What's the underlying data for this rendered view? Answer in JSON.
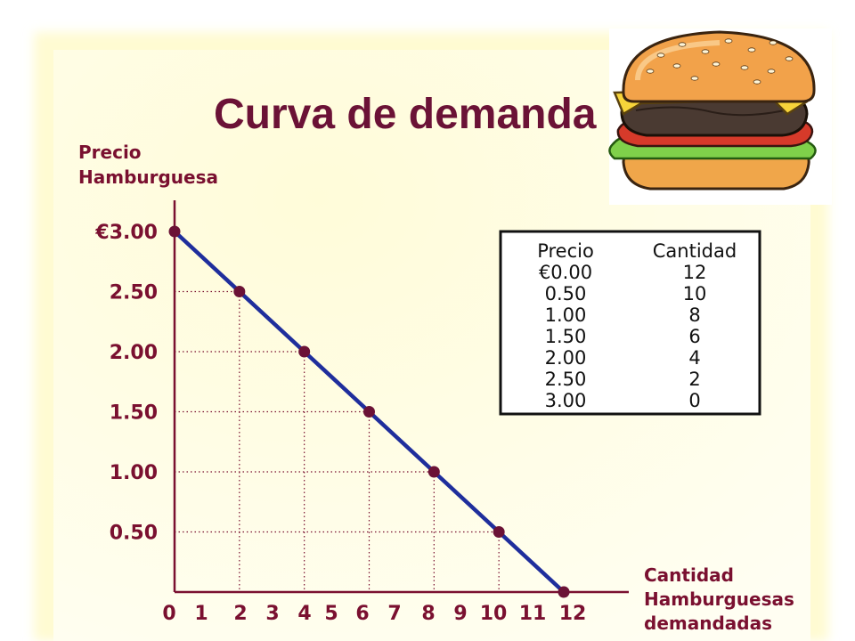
{
  "chart_data": {
    "type": "line",
    "title": "Curva de demanda",
    "ylabel": [
      "Precio",
      "Hamburguesa"
    ],
    "xlabel": [
      "Cantidad",
      "Hamburguesas",
      "demandadas"
    ],
    "x_ticks": [
      "0",
      "1",
      "2",
      "3",
      "4",
      "5",
      "6",
      "7",
      "8",
      "9",
      "10",
      "11",
      "12"
    ],
    "y_ticks": [
      {
        "value": 3.0,
        "label": "€3.00"
      },
      {
        "value": 2.5,
        "label": "2.50"
      },
      {
        "value": 2.0,
        "label": "2.00"
      },
      {
        "value": 1.5,
        "label": "1.50"
      },
      {
        "value": 1.0,
        "label": "1.00"
      },
      {
        "value": 0.5,
        "label": "0.50"
      }
    ],
    "xlim": [
      0,
      12
    ],
    "ylim": [
      0,
      3
    ],
    "series": [
      {
        "x": [
          0,
          2,
          4,
          6,
          8,
          10,
          12
        ],
        "y": [
          3.0,
          2.5,
          2.0,
          1.5,
          1.0,
          0.5,
          0.0
        ]
      }
    ],
    "grid": "dotted guides from points to axes",
    "table": {
      "headers": [
        "Precio",
        "Cantidad"
      ],
      "rows": [
        [
          "€0.00",
          "12"
        ],
        [
          "0.50",
          "10"
        ],
        [
          "1.00",
          "8"
        ],
        [
          "1.50",
          "6"
        ],
        [
          "2.00",
          "4"
        ],
        [
          "2.50",
          "2"
        ],
        [
          "3.00",
          "0"
        ]
      ]
    }
  },
  "colors": {
    "background": "#fffde0",
    "curve": "#1f2e9c",
    "points": "#6b1236",
    "axis": "#7a1030",
    "text": "#7a1030"
  },
  "icons": {
    "illustration": "hamburger-illustration"
  }
}
